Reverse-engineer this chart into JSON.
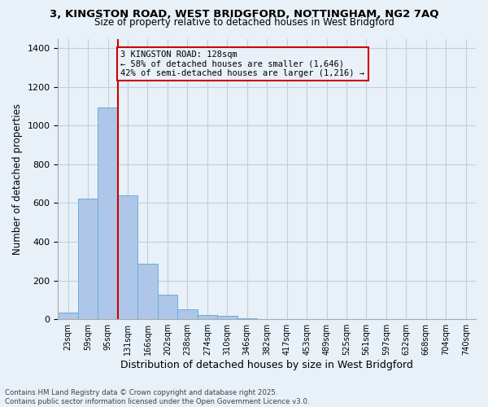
{
  "title_line1": "3, KINGSTON ROAD, WEST BRIDGFORD, NOTTINGHAM, NG2 7AQ",
  "title_line2": "Size of property relative to detached houses in West Bridgford",
  "xlabel": "Distribution of detached houses by size in West Bridgford",
  "ylabel": "Number of detached properties",
  "bin_labels": [
    "23sqm",
    "59sqm",
    "95sqm",
    "131sqm",
    "166sqm",
    "202sqm",
    "238sqm",
    "274sqm",
    "310sqm",
    "346sqm",
    "382sqm",
    "417sqm",
    "453sqm",
    "489sqm",
    "525sqm",
    "561sqm",
    "597sqm",
    "632sqm",
    "668sqm",
    "704sqm",
    "740sqm"
  ],
  "bar_values": [
    35,
    625,
    1095,
    640,
    285,
    125,
    50,
    22,
    18,
    5,
    0,
    0,
    0,
    0,
    0,
    0,
    0,
    0,
    0,
    0,
    0
  ],
  "bar_color": "#aec6e8",
  "bar_edge_color": "#6baed6",
  "bg_color": "#e8f0f8",
  "grid_color": "#c0cfe0",
  "property_line_bin_index": 3,
  "annotation_text": "3 KINGSTON ROAD: 128sqm\n← 58% of detached houses are smaller (1,646)\n42% of semi-detached houses are larger (1,216) →",
  "annotation_box_color": "#cc0000",
  "ylim": [
    0,
    1450
  ],
  "yticks": [
    0,
    200,
    400,
    600,
    800,
    1000,
    1200,
    1400
  ],
  "footer_line1": "Contains HM Land Registry data © Crown copyright and database right 2025.",
  "footer_line2": "Contains public sector information licensed under the Open Government Licence v3.0."
}
